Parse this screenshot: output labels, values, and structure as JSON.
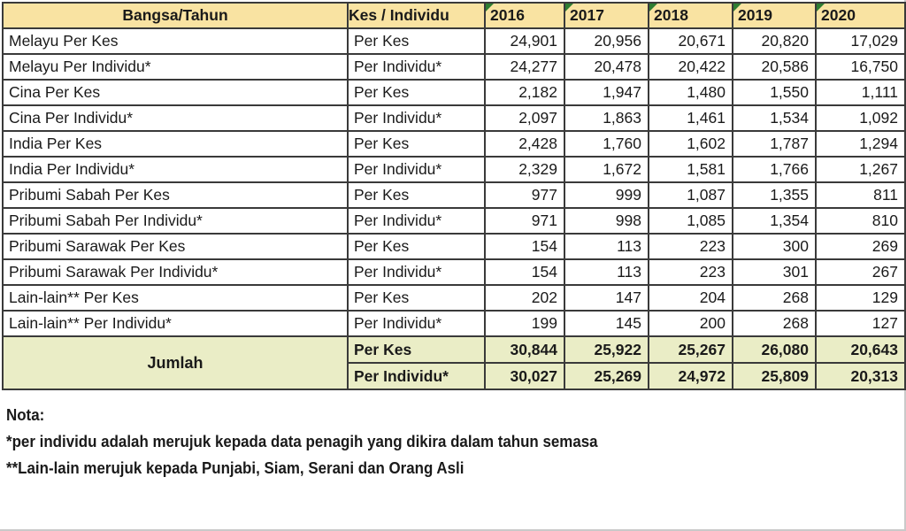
{
  "chart_data": {
    "type": "table",
    "title": "",
    "columns": [
      "Bangsa/Tahun",
      "Kes / Individu",
      "2016",
      "2017",
      "2018",
      "2019",
      "2020"
    ],
    "rows": [
      {
        "race": "Melayu Per Kes",
        "type": "Per Kes",
        "values": [
          "24,901",
          "20,956",
          "20,671",
          "20,820",
          "17,029"
        ]
      },
      {
        "race": "Melayu Per Individu*",
        "type": "Per Individu*",
        "values": [
          "24,277",
          "20,478",
          "20,422",
          "20,586",
          "16,750"
        ]
      },
      {
        "race": "Cina Per Kes",
        "type": "Per Kes",
        "values": [
          "2,182",
          "1,947",
          "1,480",
          "1,550",
          "1,111"
        ]
      },
      {
        "race": "Cina Per Individu*",
        "type": "Per Individu*",
        "values": [
          "2,097",
          "1,863",
          "1,461",
          "1,534",
          "1,092"
        ]
      },
      {
        "race": "India Per Kes",
        "type": "Per Kes",
        "values": [
          "2,428",
          "1,760",
          "1,602",
          "1,787",
          "1,294"
        ]
      },
      {
        "race": "India Per Individu*",
        "type": "Per Individu*",
        "values": [
          "2,329",
          "1,672",
          "1,581",
          "1,766",
          "1,267"
        ]
      },
      {
        "race": "Pribumi Sabah Per Kes",
        "type": "Per Kes",
        "values": [
          "977",
          "999",
          "1,087",
          "1,355",
          "811"
        ]
      },
      {
        "race": "Pribumi Sabah Per Individu*",
        "type": "Per Individu*",
        "values": [
          "971",
          "998",
          "1,085",
          "1,354",
          "810"
        ]
      },
      {
        "race": "Pribumi Sarawak Per Kes",
        "type": "Per Kes",
        "values": [
          "154",
          "113",
          "223",
          "300",
          "269"
        ]
      },
      {
        "race": "Pribumi Sarawak Per Individu*",
        "type": "Per Individu*",
        "values": [
          "154",
          "113",
          "223",
          "301",
          "267"
        ]
      },
      {
        "race": "Lain-lain** Per Kes",
        "type": "Per Kes",
        "values": [
          "202",
          "147",
          "204",
          "268",
          "129"
        ]
      },
      {
        "race": "Lain-lain** Per Individu*",
        "type": "Per Individu*",
        "values": [
          "199",
          "145",
          "200",
          "268",
          "127"
        ]
      }
    ],
    "totals": {
      "label": "Jumlah",
      "rows": [
        {
          "type": "Per Kes",
          "values": [
            "30,844",
            "25,922",
            "25,267",
            "26,080",
            "20,643"
          ]
        },
        {
          "type": "Per Individu*",
          "values": [
            "30,027",
            "25,269",
            "24,972",
            "25,809",
            "20,313"
          ]
        }
      ]
    }
  },
  "notes": {
    "title": "Nota:",
    "lines": [
      "*per individu adalah merujuk kepada data penagih yang dikira dalam tahun semasa",
      "**Lain-lain merujuk kepada Punjabi, Siam, Serani dan Orang Asli"
    ]
  },
  "colors": {
    "header_bg": "#f9e3a2",
    "total_bg": "#eaedc6",
    "grid_border": "#3a3a3a",
    "error_marker_green": "#2e7d32"
  }
}
